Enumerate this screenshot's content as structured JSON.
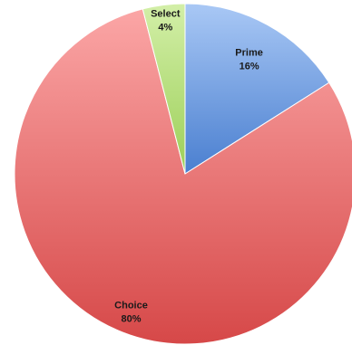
{
  "chart_data": {
    "type": "pie",
    "start_position": "top",
    "direction": "clockwise",
    "slices": [
      {
        "label": "Prime",
        "value": 16,
        "value_label": "16%",
        "color": "#6d9eeb",
        "color_light": "#a9c8f5",
        "color_dark": "#4a7fd0"
      },
      {
        "label": "Choice",
        "value": 80,
        "value_label": "80%",
        "color": "#ef6b6b",
        "color_light": "#fba6a6",
        "color_dark": "#d64848"
      },
      {
        "label": "Select",
        "value": 4,
        "value_label": "4%",
        "color": "#b6e07a",
        "color_light": "#d3efa8",
        "color_dark": "#9ccf58"
      }
    ]
  }
}
